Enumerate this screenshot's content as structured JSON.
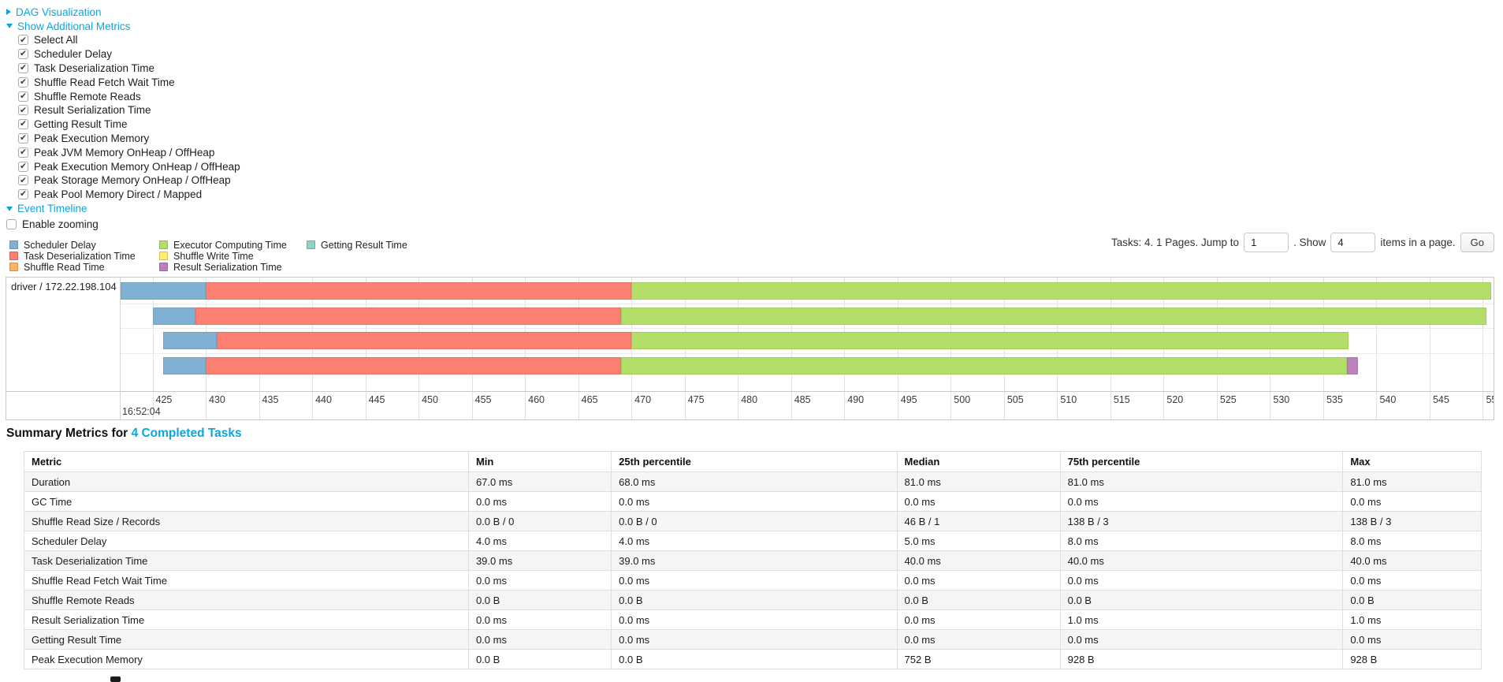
{
  "controls": {
    "dag_label": "DAG Visualization",
    "metrics_label": "Show Additional Metrics",
    "metric_checkboxes": [
      {
        "label": "Select All",
        "checked": true
      },
      {
        "label": "Scheduler Delay",
        "checked": true
      },
      {
        "label": "Task Deserialization Time",
        "checked": true
      },
      {
        "label": "Shuffle Read Fetch Wait Time",
        "checked": true
      },
      {
        "label": "Shuffle Remote Reads",
        "checked": true
      },
      {
        "label": "Result Serialization Time",
        "checked": true
      },
      {
        "label": "Getting Result Time",
        "checked": true
      },
      {
        "label": "Peak Execution Memory",
        "checked": true
      },
      {
        "label": "Peak JVM Memory OnHeap / OffHeap",
        "checked": true
      },
      {
        "label": "Peak Execution Memory OnHeap / OffHeap",
        "checked": true
      },
      {
        "label": "Peak Storage Memory OnHeap / OffHeap",
        "checked": true
      },
      {
        "label": "Peak Pool Memory Direct / Mapped",
        "checked": true
      }
    ],
    "event_timeline_label": "Event Timeline",
    "enable_zooming": {
      "label": "Enable zooming",
      "checked": false
    }
  },
  "legend": {
    "columns": [
      [
        {
          "label": "Scheduler Delay",
          "color": "#80B1D3"
        },
        {
          "label": "Task Deserialization Time",
          "color": "#FB8072"
        },
        {
          "label": "Shuffle Read Time",
          "color": "#FDB462"
        }
      ],
      [
        {
          "label": "Executor Computing Time",
          "color": "#B3DE69"
        },
        {
          "label": "Shuffle Write Time",
          "color": "#FFED6F"
        },
        {
          "label": "Result Serialization Time",
          "color": "#BC80BD"
        }
      ],
      [
        {
          "label": "Getting Result Time",
          "color": "#8DD3C7"
        }
      ]
    ]
  },
  "pagination": {
    "prefix": "Tasks: 4. 1 Pages. Jump to",
    "jump_value": "1",
    "mid": ". Show",
    "size_value": "4",
    "suffix": "items in a page.",
    "go_label": "Go"
  },
  "chart_data": {
    "type": "timeline-gantt",
    "group_label": "driver / 172.22.198.104",
    "axis": {
      "unit": "ms within second",
      "base_time_label": "16:52:04",
      "min": 422,
      "max": 551,
      "tick_start": 425,
      "tick_end": 550,
      "tick_step": 5
    },
    "colors": {
      "scheduler-delay": "#80B1D3",
      "task-deserialization": "#FB8072",
      "shuffle-read": "#FDB462",
      "executor-computing": "#B3DE69",
      "shuffle-write": "#FFED6F",
      "result-serialization": "#BC80BD",
      "getting-result": "#8DD3C7"
    },
    "tasks": [
      {
        "segments": [
          {
            "type": "scheduler-delay",
            "start": 422,
            "end": 430
          },
          {
            "type": "task-deserialization",
            "start": 430,
            "end": 470
          },
          {
            "type": "executor-computing",
            "start": 470,
            "end": 550.8
          }
        ]
      },
      {
        "segments": [
          {
            "type": "scheduler-delay",
            "start": 425,
            "end": 429
          },
          {
            "type": "task-deserialization",
            "start": 429,
            "end": 469
          },
          {
            "type": "executor-computing",
            "start": 469,
            "end": 550.3
          }
        ]
      },
      {
        "segments": [
          {
            "type": "scheduler-delay",
            "start": 426,
            "end": 431
          },
          {
            "type": "task-deserialization",
            "start": 431,
            "end": 470
          },
          {
            "type": "executor-computing",
            "start": 470,
            "end": 537.4
          }
        ]
      },
      {
        "segments": [
          {
            "type": "scheduler-delay",
            "start": 426,
            "end": 430
          },
          {
            "type": "task-deserialization",
            "start": 430,
            "end": 469
          },
          {
            "type": "executor-computing",
            "start": 469,
            "end": 537.2
          },
          {
            "type": "result-serialization",
            "start": 537.2,
            "end": 538.3
          }
        ]
      }
    ]
  },
  "summary": {
    "title_prefix": "Summary Metrics for",
    "title_link": "4 Completed Tasks",
    "headers": [
      "Metric",
      "Min",
      "25th percentile",
      "Median",
      "75th percentile",
      "Max"
    ],
    "rows": [
      [
        "Duration",
        "67.0 ms",
        "68.0 ms",
        "81.0 ms",
        "81.0 ms",
        "81.0 ms"
      ],
      [
        "GC Time",
        "0.0 ms",
        "0.0 ms",
        "0.0 ms",
        "0.0 ms",
        "0.0 ms"
      ],
      [
        "Shuffle Read Size / Records",
        "0.0 B / 0",
        "0.0 B / 0",
        "46 B / 1",
        "138 B / 3",
        "138 B / 3"
      ],
      [
        "Scheduler Delay",
        "4.0 ms",
        "4.0 ms",
        "5.0 ms",
        "8.0 ms",
        "8.0 ms"
      ],
      [
        "Task Deserialization Time",
        "39.0 ms",
        "39.0 ms",
        "40.0 ms",
        "40.0 ms",
        "40.0 ms"
      ],
      [
        "Shuffle Read Fetch Wait Time",
        "0.0 ms",
        "0.0 ms",
        "0.0 ms",
        "0.0 ms",
        "0.0 ms"
      ],
      [
        "Shuffle Remote Reads",
        "0.0 B",
        "0.0 B",
        "0.0 B",
        "0.0 B",
        "0.0 B"
      ],
      [
        "Result Serialization Time",
        "0.0 ms",
        "0.0 ms",
        "0.0 ms",
        "1.0 ms",
        "1.0 ms"
      ],
      [
        "Getting Result Time",
        "0.0 ms",
        "0.0 ms",
        "0.0 ms",
        "0.0 ms",
        "0.0 ms"
      ],
      [
        "Peak Execution Memory",
        "0.0 B",
        "0.0 B",
        "752 B",
        "928 B",
        "928 B"
      ]
    ]
  }
}
